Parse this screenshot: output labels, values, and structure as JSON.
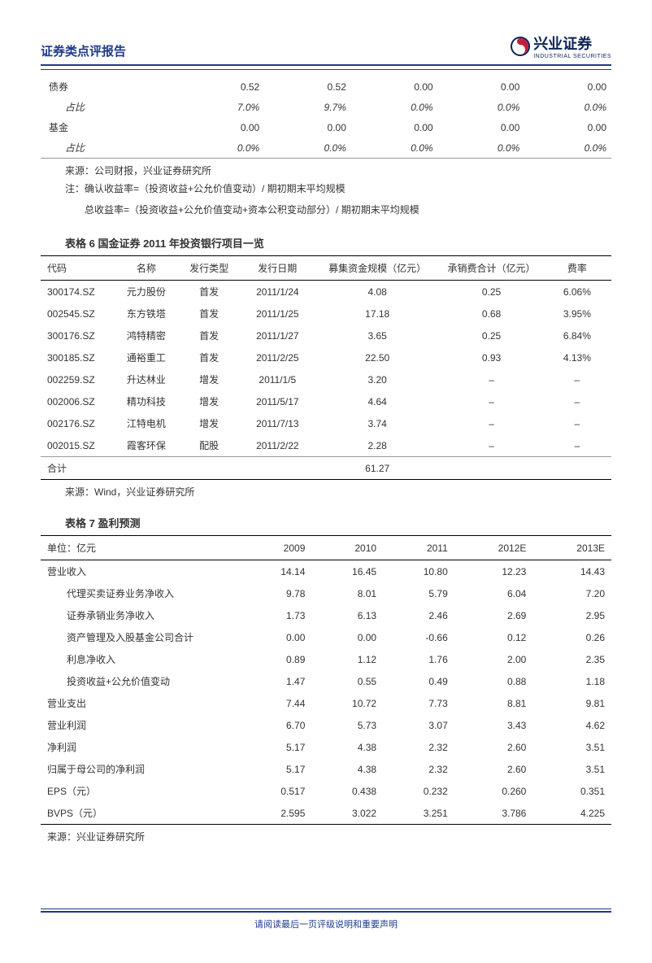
{
  "header": {
    "title": "证券类点评报告",
    "logo_cn": "兴业证券",
    "logo_en": "INDUSTRIAL SECURITIES"
  },
  "colors": {
    "brand_blue": "#1e3a8a",
    "logo_red": "#c41e3a",
    "text": "#333333",
    "rule_gray": "#999999"
  },
  "table1": {
    "rows": [
      {
        "label": "债券",
        "sub": false,
        "vals": [
          "0.52",
          "0.52",
          "0.00",
          "0.00",
          "0.00"
        ]
      },
      {
        "label": "占比",
        "sub": true,
        "vals": [
          "7.0%",
          "9.7%",
          "0.0%",
          "0.0%",
          "0.0%"
        ]
      },
      {
        "label": "基金",
        "sub": false,
        "vals": [
          "0.00",
          "0.00",
          "0.00",
          "0.00",
          "0.00"
        ]
      },
      {
        "label": "占比",
        "sub": true,
        "vals": [
          "0.0%",
          "0.0%",
          "0.0%",
          "0.0%",
          "0.0%"
        ]
      }
    ],
    "source": "来源：公司财报，兴业证券研究所",
    "note1": "注：确认收益率=（投资收益+公允价值变动）/  期初期末平均规模",
    "note2": "总收益率=（投资收益+公允价值变动+资本公积变动部分）/  期初期末平均规模"
  },
  "table2": {
    "title": "表格  6  国金证券 2011 年投资银行项目一览",
    "headers": [
      "代码",
      "名称",
      "发行类型",
      "发行日期",
      "募集资金规模（亿元）",
      "承销费合计（亿元）",
      "费率"
    ],
    "rows": [
      [
        "300174.SZ",
        "元力股份",
        "首发",
        "2011/1/24",
        "4.08",
        "0.25",
        "6.06%"
      ],
      [
        "002545.SZ",
        "东方铁塔",
        "首发",
        "2011/1/25",
        "17.18",
        "0.68",
        "3.95%"
      ],
      [
        "300176.SZ",
        "鸿特精密",
        "首发",
        "2011/1/27",
        "3.65",
        "0.25",
        "6.84%"
      ],
      [
        "300185.SZ",
        "通裕重工",
        "首发",
        "2011/2/25",
        "22.50",
        "0.93",
        "4.13%"
      ],
      [
        "002259.SZ",
        "升达林业",
        "增发",
        "2011/1/5",
        "3.20",
        "–",
        "–"
      ],
      [
        "002006.SZ",
        "精功科技",
        "增发",
        "2011/5/17",
        "4.64",
        "–",
        "–"
      ],
      [
        "002176.SZ",
        "江特电机",
        "增发",
        "2011/7/13",
        "3.74",
        "–",
        "–"
      ],
      [
        "002015.SZ",
        "霞客环保",
        "配股",
        "2011/2/22",
        "2.28",
        "–",
        "–"
      ]
    ],
    "total": [
      "合计",
      "",
      "",
      "",
      "61.27",
      "",
      ""
    ],
    "source": "来源：Wind，兴业证券研究所"
  },
  "table3": {
    "title": "表格 7 盈利预测",
    "headers": [
      "单位：亿元",
      "2009",
      "2010",
      "2011",
      "2012E",
      "2013E"
    ],
    "rows": [
      {
        "indent": false,
        "cells": [
          "营业收入",
          "14.14",
          "16.45",
          "10.80",
          "12.23",
          "14.43"
        ]
      },
      {
        "indent": true,
        "cells": [
          "代理买卖证券业务净收入",
          "9.78",
          "8.01",
          "5.79",
          "6.04",
          "7.20"
        ]
      },
      {
        "indent": true,
        "cells": [
          "证券承销业务净收入",
          "1.73",
          "6.13",
          "2.46",
          "2.69",
          "2.95"
        ]
      },
      {
        "indent": true,
        "cells": [
          "资产管理及入股基金公司合计",
          "0.00",
          "0.00",
          "-0.66",
          "0.12",
          "0.26"
        ]
      },
      {
        "indent": true,
        "cells": [
          "利息净收入",
          "0.89",
          "1.12",
          "1.76",
          "2.00",
          "2.35"
        ]
      },
      {
        "indent": true,
        "cells": [
          "投资收益+公允价值变动",
          "1.47",
          "0.55",
          "0.49",
          "0.88",
          "1.18"
        ]
      },
      {
        "indent": false,
        "cells": [
          "营业支出",
          "7.44",
          "10.72",
          "7.73",
          "8.81",
          "9.81"
        ]
      },
      {
        "indent": false,
        "cells": [
          "营业利润",
          "6.70",
          "5.73",
          "3.07",
          "3.43",
          "4.62"
        ]
      },
      {
        "indent": false,
        "cells": [
          "净利润",
          "5.17",
          "4.38",
          "2.32",
          "2.60",
          "3.51"
        ]
      },
      {
        "indent": false,
        "cells": [
          "归属于母公司的净利润",
          "5.17",
          "4.38",
          "2.32",
          "2.60",
          "3.51"
        ]
      },
      {
        "indent": false,
        "cells": [
          "EPS（元）",
          "0.517",
          "0.438",
          "0.232",
          "0.260",
          "0.351"
        ]
      },
      {
        "indent": false,
        "cells": [
          "BVPS（元）",
          "2.595",
          "3.022",
          "3.251",
          "3.786",
          "4.225"
        ]
      }
    ],
    "source": "来源：兴业证券研究所"
  },
  "footer": "请阅读最后一页评级说明和重要声明"
}
